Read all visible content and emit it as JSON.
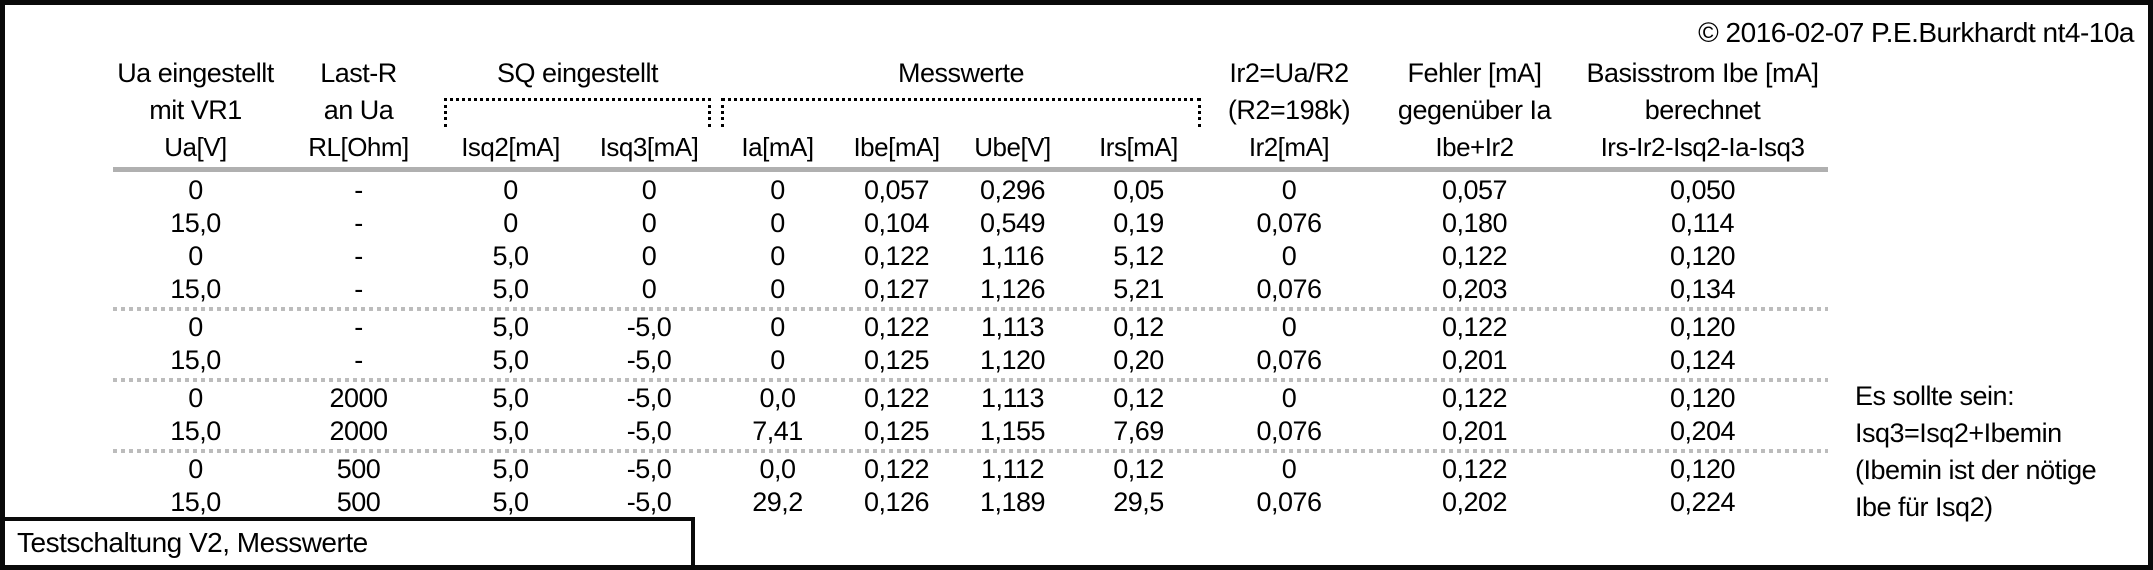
{
  "copyright": "© 2016-02-07 P.E.Burkhardt nt4-10a",
  "footer": {
    "label": "Testschaltung V2, Messwerte"
  },
  "side_note": {
    "line1": "Es sollte sein:",
    "line2": "Isq3=Isq2+Ibemin",
    "line3": "(Ibemin ist der nötige",
    "line4": "Ibe für Isq2)"
  },
  "table": {
    "groups": {
      "ua": {
        "title": "Ua eingestellt",
        "sub": "mit VR1"
      },
      "lastr": {
        "title": "Last-R",
        "sub": "an Ua"
      },
      "sq": {
        "title": "SQ eingestellt"
      },
      "mess": {
        "title": "Messwerte"
      },
      "ir2": {
        "title": "Ir2=Ua/R2",
        "sub": "(R2=198k)"
      },
      "fehler": {
        "title": "Fehler [mA]",
        "sub": "gegenüber Ia"
      },
      "basis": {
        "title": "Basisstrom Ibe [mA]",
        "sub": "berechnet"
      }
    },
    "columns": [
      "Ua[V]",
      "RL[Ohm]",
      "Isq2[mA]",
      "Isq3[mA]",
      "Ia[mA]",
      "Ibe[mA]",
      "Ube[V]",
      "Irs[mA]",
      "Ir2[mA]",
      "Ibe+Ir2",
      "Irs-Ir2-Isq2-Ia-Isq3"
    ],
    "rows": [
      [
        "0",
        "-",
        "0",
        "0",
        "0",
        "0,057",
        "0,296",
        "0,05",
        "0",
        "0,057",
        "0,050"
      ],
      [
        "15,0",
        "-",
        "0",
        "0",
        "0",
        "0,104",
        "0,549",
        "0,19",
        "0,076",
        "0,180",
        "0,114"
      ],
      [
        "0",
        "-",
        "5,0",
        "0",
        "0",
        "0,122",
        "1,116",
        "5,12",
        "0",
        "0,122",
        "0,120"
      ],
      [
        "15,0",
        "-",
        "5,0",
        "0",
        "0",
        "0,127",
        "1,126",
        "5,21",
        "0,076",
        "0,203",
        "0,134"
      ],
      [
        "0",
        "-",
        "5,0",
        "-5,0",
        "0",
        "0,122",
        "1,113",
        "0,12",
        "0",
        "0,122",
        "0,120"
      ],
      [
        "15,0",
        "-",
        "5,0",
        "-5,0",
        "0",
        "0,125",
        "1,120",
        "0,20",
        "0,076",
        "0,201",
        "0,124"
      ],
      [
        "0",
        "2000",
        "5,0",
        "-5,0",
        "0,0",
        "0,122",
        "1,113",
        "0,12",
        "0",
        "0,122",
        "0,120"
      ],
      [
        "15,0",
        "2000",
        "5,0",
        "-5,0",
        "7,41",
        "0,125",
        "1,155",
        "7,69",
        "0,076",
        "0,201",
        "0,204"
      ],
      [
        "0",
        "500",
        "5,0",
        "-5,0",
        "0,0",
        "0,122",
        "1,112",
        "0,12",
        "0",
        "0,122",
        "0,120"
      ],
      [
        "15,0",
        "500",
        "5,0",
        "-5,0",
        "29,2",
        "0,126",
        "1,189",
        "29,5",
        "0,076",
        "0,202",
        "0,224"
      ]
    ],
    "separators_after_rows": [
      4,
      6,
      8
    ]
  }
}
